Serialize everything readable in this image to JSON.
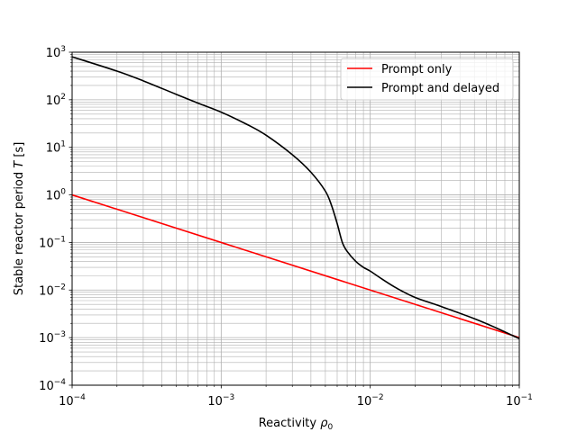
{
  "chart_data": {
    "type": "line",
    "xlabel": "Reactivity",
    "xlabel_symbol": "ρ",
    "xlabel_subscript": "0",
    "ylabel": "Stable reactor period",
    "ylabel_symbol": "T",
    "ylabel_unit": "[s]",
    "xscale": "log",
    "yscale": "log",
    "xlim": [
      0.0001,
      0.1
    ],
    "ylim": [
      0.0001,
      1000
    ],
    "grid": "major and minor",
    "legend_placement": "top-right",
    "x_ticks": [
      {
        "base": "10",
        "exp": "−4",
        "value": 0.0001
      },
      {
        "base": "10",
        "exp": "−3",
        "value": 0.001
      },
      {
        "base": "10",
        "exp": "−2",
        "value": 0.01
      },
      {
        "base": "10",
        "exp": "−1",
        "value": 0.1
      }
    ],
    "y_ticks": [
      {
        "base": "10",
        "exp": "−4",
        "value": 0.0001
      },
      {
        "base": "10",
        "exp": "−3",
        "value": 0.001
      },
      {
        "base": "10",
        "exp": "−2",
        "value": 0.01
      },
      {
        "base": "10",
        "exp": "−1",
        "value": 0.1
      },
      {
        "base": "10",
        "exp": "0",
        "value": 1
      },
      {
        "base": "10",
        "exp": "1",
        "value": 10
      },
      {
        "base": "10",
        "exp": "2",
        "value": 100
      },
      {
        "base": "10",
        "exp": "3",
        "value": 1000
      }
    ],
    "series": [
      {
        "name": "Prompt only",
        "color": "#ff0000",
        "x": [
          0.0001,
          0.1
        ],
        "y": [
          1.0,
          0.001
        ]
      },
      {
        "name": "Prompt and delayed",
        "color": "#000000",
        "x": [
          0.0001,
          0.0002,
          0.0003,
          0.0005,
          0.0007,
          0.001,
          0.0015,
          0.002,
          0.003,
          0.004,
          0.005,
          0.0055,
          0.006,
          0.0065,
          0.007,
          0.008,
          0.009,
          0.01,
          0.012,
          0.015,
          0.02,
          0.03,
          0.05,
          0.07,
          0.1
        ],
        "y": [
          800,
          400,
          250,
          130,
          85,
          55,
          30,
          18,
          7,
          3,
          1.2,
          0.6,
          0.25,
          0.1,
          0.065,
          0.04,
          0.03,
          0.025,
          0.017,
          0.011,
          0.007,
          0.0045,
          0.0025,
          0.0016,
          0.00095
        ]
      }
    ]
  }
}
